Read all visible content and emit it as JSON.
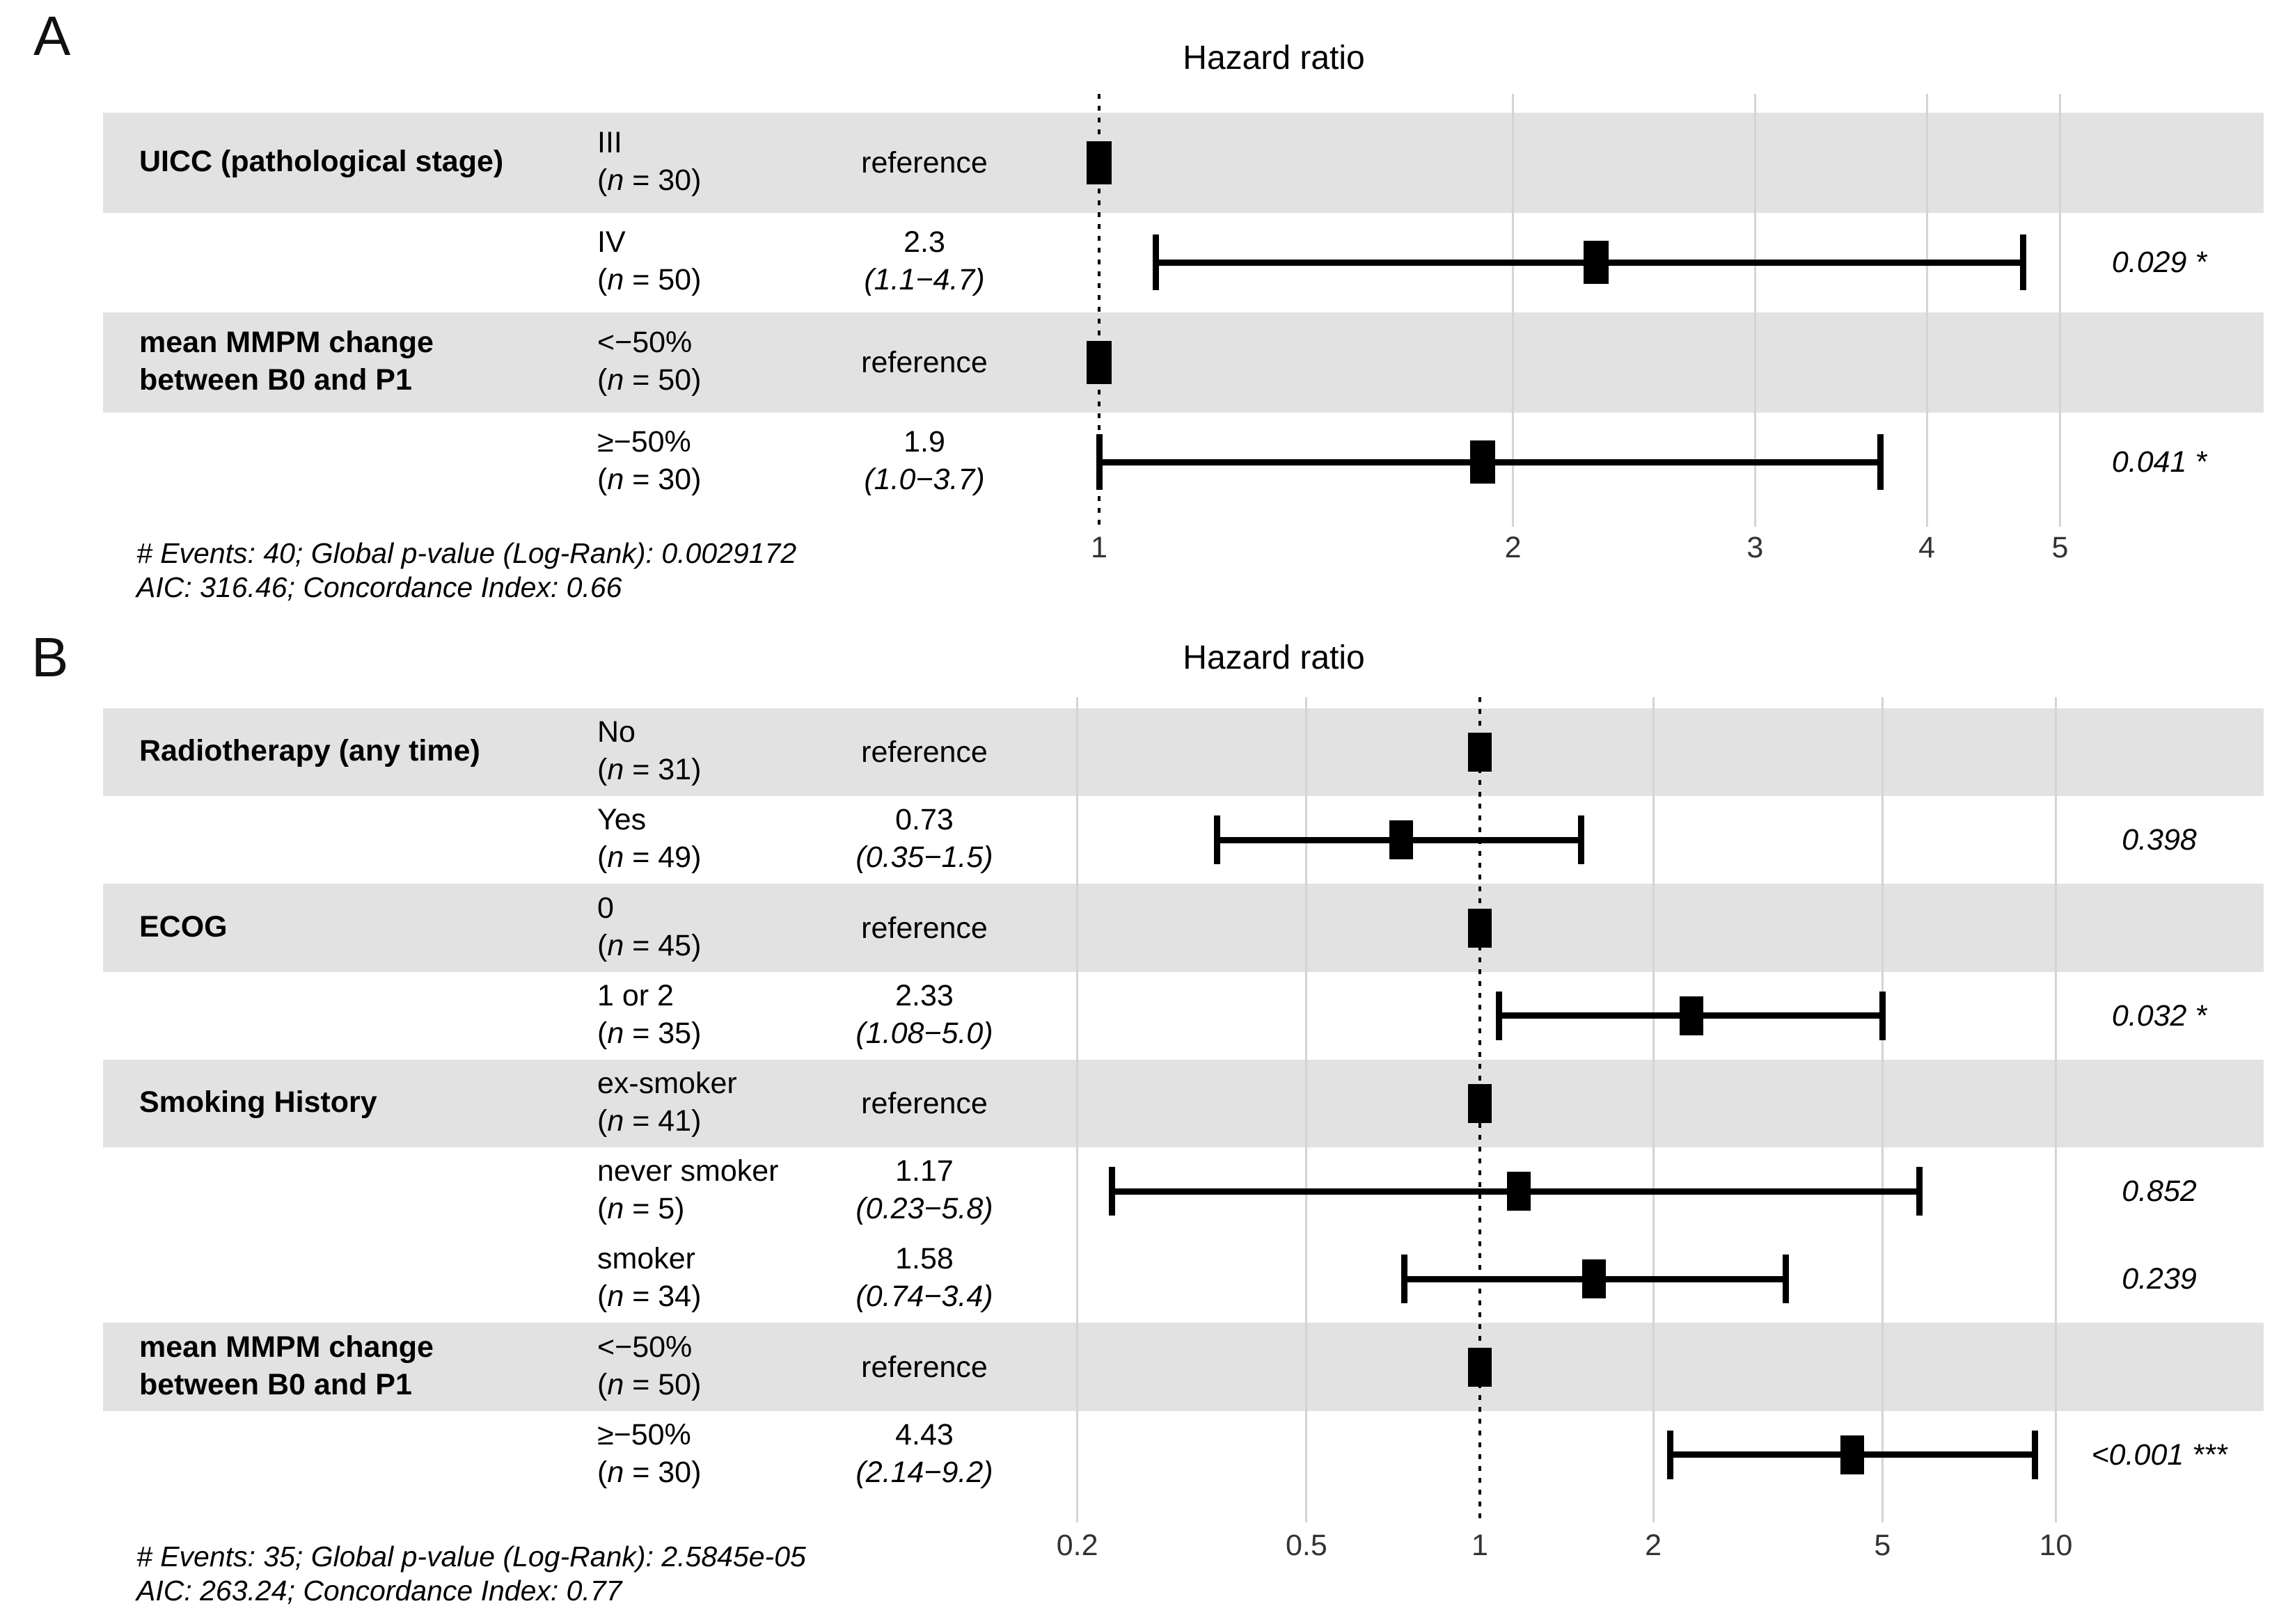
{
  "figure": {
    "background": "#ffffff",
    "band_color": "#e2e2e2",
    "grid_color": "#d4d4d4",
    "reference_line_color": "#000000",
    "marker_color": "#000000",
    "text_color": "#000000"
  },
  "chart_data": [
    {
      "type": "forest",
      "label": "A",
      "title": "Hazard ratio",
      "x_scale": "log10",
      "x_ticks": [
        1,
        2,
        3,
        4,
        5
      ],
      "x_tick_labels": [
        "1",
        "2",
        "3",
        "4",
        "5"
      ],
      "x_range": [
        1,
        5
      ],
      "reference_line": 1,
      "legend": "none",
      "grid": "vertical-only",
      "rows": [
        {
          "variable_lines": [
            "UICC (pathological stage)"
          ],
          "level": "III",
          "n": 30,
          "estimate_text": "reference",
          "is_reference": true,
          "hr": 1,
          "shaded": true
        },
        {
          "variable_lines": [],
          "level": "IV",
          "n": 50,
          "estimate_text": "2.3",
          "ci_text": "(1.1−4.7)",
          "hr": 2.3,
          "ci_low": 1.1,
          "ci_high": 4.7,
          "p_value": "0.029 *",
          "shaded": false
        },
        {
          "variable_lines": [
            "mean MMPM change",
            "between B0 and P1"
          ],
          "level": "<−50%",
          "n": 50,
          "estimate_text": "reference",
          "is_reference": true,
          "hr": 1,
          "shaded": true
        },
        {
          "variable_lines": [],
          "level": "≥−50%",
          "n": 30,
          "estimate_text": "1.9",
          "ci_text": "(1.0−3.7)",
          "hr": 1.9,
          "ci_low": 1.0,
          "ci_high": 3.7,
          "p_value": "0.041 *",
          "shaded": false
        }
      ],
      "footnote_lines": [
        "# Events: 40; Global p-value (Log-Rank): 0.0029172",
        "AIC: 316.46; Concordance Index: 0.66"
      ]
    },
    {
      "type": "forest",
      "label": "B",
      "title": "Hazard ratio",
      "x_scale": "log10",
      "x_ticks": [
        0.2,
        0.5,
        1,
        2,
        5,
        10
      ],
      "x_tick_labels": [
        "0.2",
        "0.5",
        "1",
        "2",
        "5",
        "10"
      ],
      "x_range": [
        0.2,
        10
      ],
      "reference_line": 1,
      "legend": "none",
      "grid": "vertical-only",
      "rows": [
        {
          "variable_lines": [
            "Radiotherapy (any time)"
          ],
          "level": "No",
          "n": 31,
          "estimate_text": "reference",
          "is_reference": true,
          "hr": 1,
          "shaded": true
        },
        {
          "variable_lines": [],
          "level": "Yes",
          "n": 49,
          "estimate_text": "0.73",
          "ci_text": "(0.35−1.5)",
          "hr": 0.73,
          "ci_low": 0.35,
          "ci_high": 1.5,
          "p_value": "0.398",
          "shaded": false
        },
        {
          "variable_lines": [
            "ECOG"
          ],
          "level": "0",
          "n": 45,
          "estimate_text": "reference",
          "is_reference": true,
          "hr": 1,
          "shaded": true
        },
        {
          "variable_lines": [],
          "level": "1 or 2",
          "n": 35,
          "estimate_text": "2.33",
          "ci_text": "(1.08−5.0)",
          "hr": 2.33,
          "ci_low": 1.08,
          "ci_high": 5.0,
          "p_value": "0.032 *",
          "shaded": false
        },
        {
          "variable_lines": [
            "Smoking History"
          ],
          "level": "ex-smoker",
          "n": 41,
          "estimate_text": "reference",
          "is_reference": true,
          "hr": 1,
          "shaded": true
        },
        {
          "variable_lines": [],
          "level": "never smoker",
          "n": 5,
          "estimate_text": "1.17",
          "ci_text": "(0.23−5.8)",
          "hr": 1.17,
          "ci_low": 0.23,
          "ci_high": 5.8,
          "p_value": "0.852",
          "shaded": false
        },
        {
          "variable_lines": [],
          "level": "smoker",
          "n": 34,
          "estimate_text": "1.58",
          "ci_text": "(0.74−3.4)",
          "hr": 1.58,
          "ci_low": 0.74,
          "ci_high": 3.4,
          "p_value": "0.239",
          "shaded": false
        },
        {
          "variable_lines": [
            "mean MMPM change",
            "between B0 and P1"
          ],
          "level": "<−50%",
          "n": 50,
          "estimate_text": "reference",
          "is_reference": true,
          "hr": 1,
          "shaded": true
        },
        {
          "variable_lines": [],
          "level": "≥−50%",
          "n": 30,
          "estimate_text": "4.43",
          "ci_text": "(2.14−9.2)",
          "hr": 4.43,
          "ci_low": 2.14,
          "ci_high": 9.2,
          "p_value": "<0.001 ***",
          "shaded": false
        }
      ],
      "footnote_lines": [
        "# Events: 35; Global p-value (Log-Rank): 2.5845e-05",
        "AIC: 263.24; Concordance Index: 0.77"
      ]
    }
  ]
}
